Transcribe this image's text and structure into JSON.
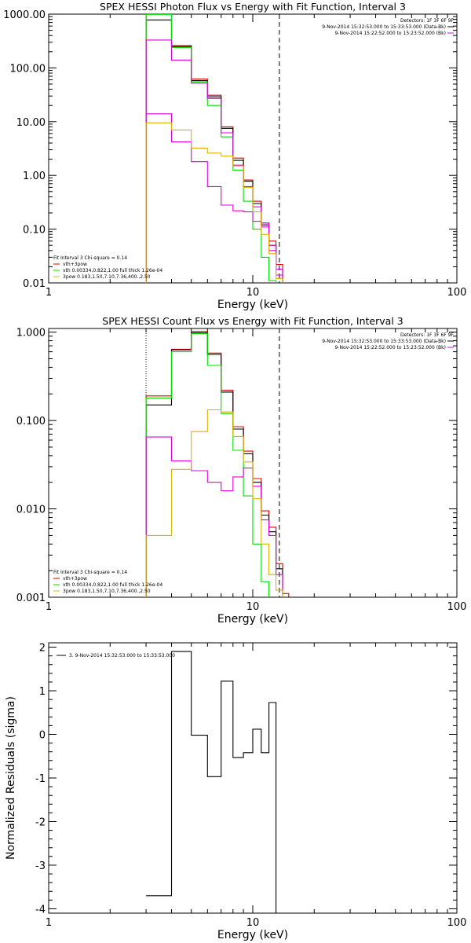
{
  "colors": {
    "black": "#000000",
    "red": "#e00000",
    "green": "#00e000",
    "magenta": "#e000e0",
    "yellow": "#e0b000"
  },
  "chart_data": [
    {
      "type": "line",
      "step": true,
      "title": "SPEX HESSI Photon Flux vs Energy with Fit Function, Interval 3",
      "xlabel": "Energy (keV)",
      "ylabel": "",
      "xscale": "log",
      "yscale": "log",
      "xlim": [
        1,
        100
      ],
      "ylim": [
        0.01,
        1000
      ],
      "xticks": [
        {
          "value": 1,
          "label": "1"
        },
        {
          "value": 10,
          "label": "10"
        },
        {
          "value": 100,
          "label": "100"
        }
      ],
      "yticks": [
        {
          "value": 1000,
          "label": "1000.00"
        },
        {
          "value": 100,
          "label": "100.00"
        },
        {
          "value": 10,
          "label": "10.00"
        },
        {
          "value": 1,
          "label": "1.00"
        },
        {
          "value": 0.1,
          "label": "0.10"
        },
        {
          "value": 0.01,
          "label": "0.01"
        }
      ],
      "vlines": [
        {
          "x": 3.0,
          "style": "dotted"
        },
        {
          "x": 13.5,
          "style": "dashed"
        }
      ],
      "bin_edges": [
        3,
        4,
        5,
        6,
        7,
        8,
        9,
        10,
        11,
        12,
        13,
        14,
        15
      ],
      "series": [
        {
          "color": "#e00000",
          "values": [
            1000,
            260,
            62,
            31,
            8,
            2.1,
            0.82,
            0.33,
            0.13,
            0.06,
            0.022,
            0.0
          ]
        },
        {
          "color": "#000000",
          "values": [
            780,
            250,
            58,
            29,
            7.5,
            1.9,
            0.78,
            0.3,
            0.12,
            0.05,
            0.018,
            0.0
          ]
        },
        {
          "color": "#00e000",
          "values": [
            990,
            240,
            55,
            20,
            5.2,
            1.25,
            0.33,
            0.1,
            0.03,
            0.011,
            0.0,
            0.0
          ]
        },
        {
          "color": "#e000e0",
          "values": [
            330,
            140,
            52,
            27,
            6.2,
            1.55,
            0.62,
            0.26,
            0.11,
            0.04,
            0.014,
            0.0
          ]
        },
        {
          "color": "#e000e0",
          "values": [
            14,
            4.2,
            1.8,
            0.62,
            0.28,
            0.22,
            0.21,
            0.14,
            0.13,
            0.05,
            0.018,
            0.0
          ]
        },
        {
          "color": "#e0b000",
          "values": [
            9.5,
            7.0,
            3.2,
            2.6,
            2.3,
            1.5,
            0.6,
            0.21,
            0.08,
            0.035,
            0.012,
            0.0
          ]
        }
      ],
      "legend_top": {
        "header": "Detectors: 1F 3F 6F 9F",
        "entries": [
          {
            "color": "#000000",
            "label": "9-Nov-2014 15:32:53.000 to 15:33:53.000 (Data-Bk)"
          },
          {
            "color": "#e000e0",
            "label": "9-Nov-2014 15:22:52.000 to 15:23:52.000 (Bk)"
          }
        ]
      },
      "legend_bottom": {
        "header": "Fit Interval 3   Chi-square = 0.14",
        "entries": [
          {
            "color": "#e00000",
            "label": "vth+3pow"
          },
          {
            "color": "#00e000",
            "label": "vth 0.00334,0.822,1.00  full thick 1.26e-04"
          },
          {
            "color": "#e0b000",
            "label": "3pow 0.183,1.50,7.10,7.36,400.,2.50"
          }
        ]
      }
    },
    {
      "type": "line",
      "step": true,
      "title": "SPEX HESSI Count Flux vs Energy with Fit Function, Interval 3",
      "xlabel": "Energy (keV)",
      "ylabel": "",
      "xscale": "log",
      "yscale": "log",
      "xlim": [
        1,
        100
      ],
      "ylim": [
        0.001,
        1.1
      ],
      "xticks": [
        {
          "value": 1,
          "label": "1"
        },
        {
          "value": 10,
          "label": "10"
        },
        {
          "value": 100,
          "label": "100"
        }
      ],
      "yticks": [
        {
          "value": 1,
          "label": "1.000"
        },
        {
          "value": 0.1,
          "label": "0.100"
        },
        {
          "value": 0.01,
          "label": "0.010"
        },
        {
          "value": 0.001,
          "label": "0.001"
        }
      ],
      "vlines": [
        {
          "x": 3.0,
          "style": "dotted"
        },
        {
          "x": 13.5,
          "style": "dashed"
        }
      ],
      "bin_edges": [
        3,
        4,
        5,
        6,
        7,
        8,
        9,
        10,
        11,
        12,
        13,
        14,
        15,
        16
      ],
      "series": [
        {
          "color": "#e00000",
          "values": [
            0.19,
            0.64,
            1.02,
            0.58,
            0.22,
            0.085,
            0.045,
            0.022,
            0.0095,
            0.0062,
            0.0024,
            0.0011,
            0.0
          ]
        },
        {
          "color": "#000000",
          "values": [
            0.15,
            0.63,
            0.98,
            0.56,
            0.21,
            0.08,
            0.042,
            0.02,
            0.0085,
            0.0055,
            0.0021,
            0.001,
            0.0
          ]
        },
        {
          "color": "#00e000",
          "values": [
            0.18,
            0.6,
            0.96,
            0.42,
            0.12,
            0.046,
            0.014,
            0.004,
            0.0015,
            0.0,
            0.0,
            0.0,
            0.0
          ]
        },
        {
          "color": "#e000e0",
          "values": [
            0.065,
            0.035,
            0.027,
            0.02,
            0.016,
            0.023,
            0.029,
            0.018,
            0.0075,
            0.005,
            0.0018,
            0.0,
            0.0
          ]
        },
        {
          "color": "#e0b000",
          "values": [
            0.005,
            0.028,
            0.075,
            0.132,
            0.125,
            0.066,
            0.034,
            0.013,
            0.004,
            0.0018,
            0.0012,
            0.0,
            0.0
          ]
        }
      ],
      "legend_top": {
        "header": "Detectors: 1F 3F 6F 9F",
        "entries": [
          {
            "color": "#000000",
            "label": "9-Nov-2014 15:32:53.000 to 15:33:53.000 (Data-Bk)"
          },
          {
            "color": "#e000e0",
            "label": "9-Nov-2014 15:22:52.000 to 15:23:52.000 (Bk)"
          }
        ]
      },
      "legend_bottom": {
        "header": "Fit Interval 3   Chi-square = 0.14",
        "entries": [
          {
            "color": "#e00000",
            "label": "vth+3pow"
          },
          {
            "color": "#00e000",
            "label": "vth 0.00334,0.822,1.00  full thick 1.26e-04"
          },
          {
            "color": "#e0b000",
            "label": "3pow 0.183,1.50,7.10,7.36,400.,2.50"
          }
        ]
      }
    },
    {
      "type": "line",
      "step": true,
      "title": "",
      "xlabel": "Energy (keV)",
      "ylabel": "Normalized Residuals (sigma)",
      "xscale": "log",
      "yscale": "linear",
      "xlim": [
        1,
        100
      ],
      "ylim": [
        -4.1,
        2.1
      ],
      "xticks": [
        {
          "value": 1,
          "label": "1"
        },
        {
          "value": 10,
          "label": "10"
        },
        {
          "value": 100,
          "label": "100"
        }
      ],
      "yticks": [
        {
          "value": 2,
          "label": "2"
        },
        {
          "value": 1,
          "label": "1"
        },
        {
          "value": 0,
          "label": "0"
        },
        {
          "value": -1,
          "label": "-1"
        },
        {
          "value": -2,
          "label": "-2"
        },
        {
          "value": -3,
          "label": "-3"
        },
        {
          "value": -4,
          "label": "-4"
        }
      ],
      "bin_edges": [
        3,
        4,
        5,
        6,
        7,
        8,
        9,
        10,
        11,
        12,
        13
      ],
      "series": [
        {
          "color": "#000000",
          "values": [
            -3.7,
            1.9,
            -0.02,
            -0.97,
            1.22,
            -0.53,
            -0.42,
            0.12,
            -0.42,
            0.73
          ]
        }
      ],
      "legend_top": {
        "header": "",
        "entries": [
          {
            "color": "#000000",
            "label": "3.  9-Nov-2014 15:32:53.000 to 15:33:53.000"
          }
        ]
      }
    }
  ]
}
